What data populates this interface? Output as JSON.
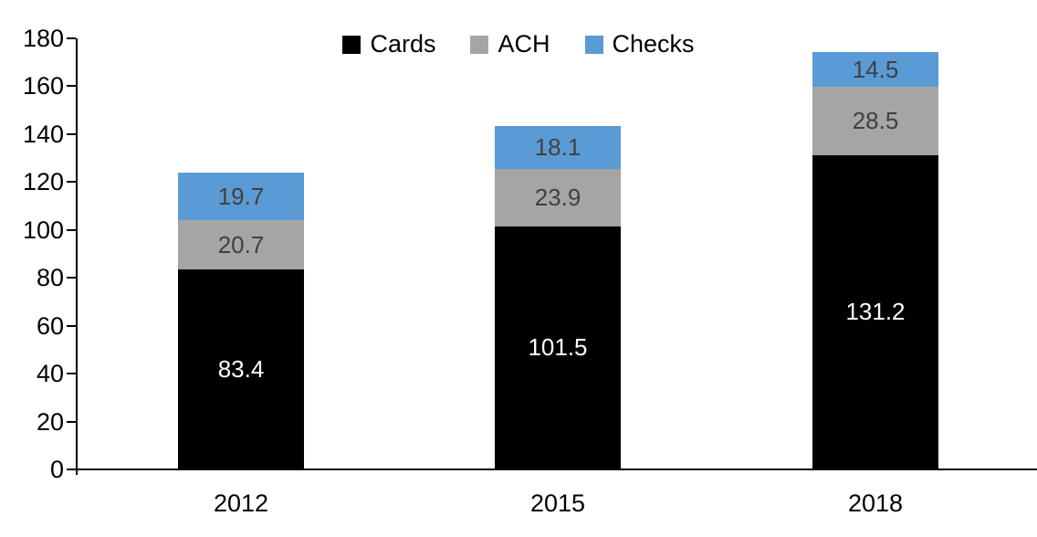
{
  "chart_data": {
    "type": "bar",
    "stacked": true,
    "title": "",
    "xlabel": "",
    "ylabel": "",
    "categories": [
      "2012",
      "2015",
      "2018"
    ],
    "series": [
      {
        "name": "Cards",
        "color": "#000000",
        "label_color": "#ffffff",
        "values": [
          83.4,
          101.5,
          131.2
        ]
      },
      {
        "name": "ACH",
        "color": "#a5a5a5",
        "label_color": "#404040",
        "values": [
          20.7,
          23.9,
          28.5
        ]
      },
      {
        "name": "Checks",
        "color": "#5b9bd5",
        "label_color": "#404040",
        "values": [
          19.7,
          18.1,
          14.5
        ]
      }
    ],
    "ylim": [
      0,
      180
    ],
    "ytick_step": 20,
    "yticks": [
      0,
      20,
      40,
      60,
      80,
      100,
      120,
      140,
      160,
      180
    ],
    "grid": false,
    "legend_position": "top-center",
    "axis_color": "#000000",
    "text_color": "#000000"
  }
}
